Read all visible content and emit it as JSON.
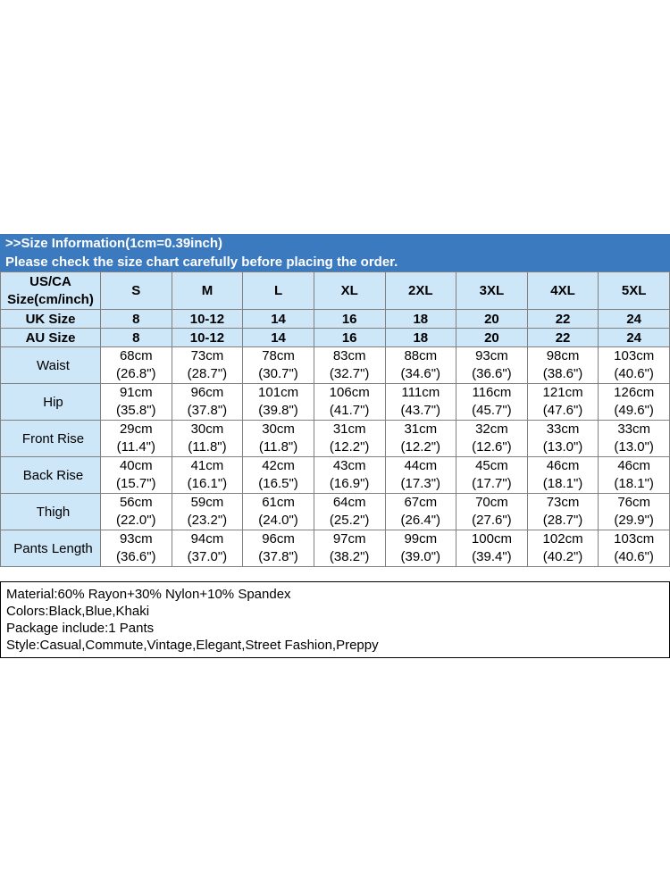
{
  "header": {
    "line1": ">>Size Information(1cm=0.39inch)",
    "line2": "Please check the size chart carefully before placing the order."
  },
  "size_table": {
    "corner_label_line1": "US/CA",
    "corner_label_line2": "Size(cm/inch)",
    "sizes": [
      "S",
      "M",
      "L",
      "XL",
      "2XL",
      "3XL",
      "4XL",
      "5XL"
    ],
    "uk_row": {
      "label": "UK Size",
      "values": [
        "8",
        "10-12",
        "14",
        "16",
        "18",
        "20",
        "22",
        "24"
      ]
    },
    "au_row": {
      "label": "AU Size",
      "values": [
        "8",
        "10-12",
        "14",
        "16",
        "18",
        "20",
        "22",
        "24"
      ]
    },
    "measurement_rows": [
      {
        "label": "Waist",
        "cells": [
          [
            "68cm",
            "(26.8\")"
          ],
          [
            "73cm",
            "(28.7\")"
          ],
          [
            "78cm",
            "(30.7\")"
          ],
          [
            "83cm",
            "(32.7\")"
          ],
          [
            "88cm",
            "(34.6\")"
          ],
          [
            "93cm",
            "(36.6\")"
          ],
          [
            "98cm",
            "(38.6\")"
          ],
          [
            "103cm",
            "(40.6\")"
          ]
        ]
      },
      {
        "label": "Hip",
        "cells": [
          [
            "91cm",
            "(35.8\")"
          ],
          [
            "96cm",
            "(37.8\")"
          ],
          [
            "101cm",
            "(39.8\")"
          ],
          [
            "106cm",
            "(41.7\")"
          ],
          [
            "111cm",
            "(43.7\")"
          ],
          [
            "116cm",
            "(45.7\")"
          ],
          [
            "121cm",
            "(47.6\")"
          ],
          [
            "126cm",
            "(49.6\")"
          ]
        ]
      },
      {
        "label": "Front Rise",
        "cells": [
          [
            "29cm",
            "(11.4\")"
          ],
          [
            "30cm",
            "(11.8\")"
          ],
          [
            "30cm",
            "(11.8\")"
          ],
          [
            "31cm",
            "(12.2\")"
          ],
          [
            "31cm",
            "(12.2\")"
          ],
          [
            "32cm",
            "(12.6\")"
          ],
          [
            "33cm",
            "(13.0\")"
          ],
          [
            "33cm",
            "(13.0\")"
          ]
        ]
      },
      {
        "label": "Back Rise",
        "cells": [
          [
            "40cm",
            "(15.7\")"
          ],
          [
            "41cm",
            "(16.1\")"
          ],
          [
            "42cm",
            "(16.5\")"
          ],
          [
            "43cm",
            "(16.9\")"
          ],
          [
            "44cm",
            "(17.3\")"
          ],
          [
            "45cm",
            "(17.7\")"
          ],
          [
            "46cm",
            "(18.1\")"
          ],
          [
            "46cm",
            "(18.1\")"
          ]
        ]
      },
      {
        "label": "Thigh",
        "cells": [
          [
            "56cm",
            "(22.0\")"
          ],
          [
            "59cm",
            "(23.2\")"
          ],
          [
            "61cm",
            "(24.0\")"
          ],
          [
            "64cm",
            "(25.2\")"
          ],
          [
            "67cm",
            "(26.4\")"
          ],
          [
            "70cm",
            "(27.6\")"
          ],
          [
            "73cm",
            "(28.7\")"
          ],
          [
            "76cm",
            "(29.9\")"
          ]
        ]
      },
      {
        "label": "Pants Length",
        "cells": [
          [
            "93cm",
            "(36.6\")"
          ],
          [
            "94cm",
            "(37.0\")"
          ],
          [
            "96cm",
            "(37.8\")"
          ],
          [
            "97cm",
            "(38.2\")"
          ],
          [
            "99cm",
            "(39.0\")"
          ],
          [
            "100cm",
            "(39.4\")"
          ],
          [
            "102cm",
            "(40.2\")"
          ],
          [
            "103cm",
            "(40.6\")"
          ]
        ]
      }
    ]
  },
  "details": {
    "lines": [
      "Material:60% Rayon+30% Nylon+10% Spandex",
      "Colors:Black,Blue,Khaki",
      "Package include:1 Pants",
      "Style:Casual,Commute,Vintage,Elegant,Street Fashion,Preppy"
    ]
  },
  "colors": {
    "header_bg": "#3b7abe",
    "cell_blue": "#cde6f8",
    "border_gray": "#808080",
    "box_border": "#000000"
  }
}
